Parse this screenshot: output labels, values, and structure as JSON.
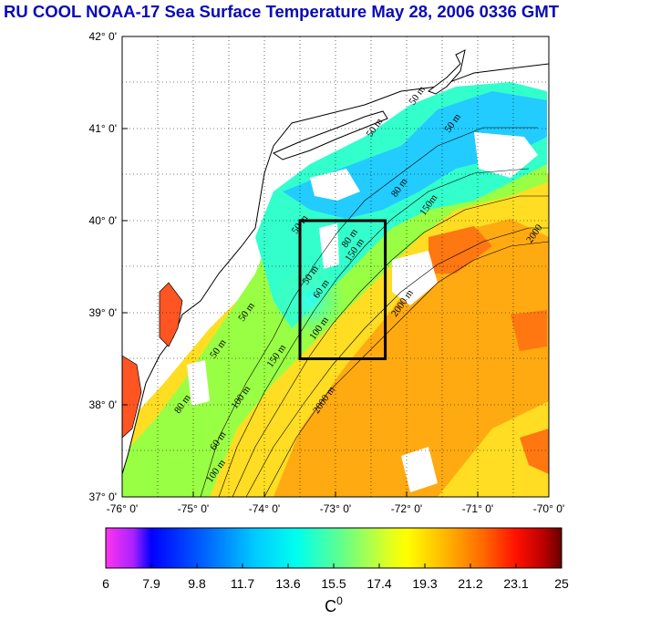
{
  "title": "RU COOL  NOAA-17 Sea Surface Temperature May 28, 2006 0336 GMT",
  "map": {
    "lon_range": [
      -76,
      -70
    ],
    "lat_range": [
      37,
      42
    ],
    "lon_ticks": [
      "-76° 0'",
      "-75° 0'",
      "-74° 0'",
      "-73° 0'",
      "-72° 0'",
      "-71° 0'",
      "-70° 0'"
    ],
    "lat_ticks": [
      "42° 0'",
      "41° 0'",
      "40° 0'",
      "39° 0'",
      "38° 0'",
      "37° 0'"
    ],
    "study_box": {
      "lon_min": -73.5,
      "lon_max": -72.3,
      "lat_min": 38.5,
      "lat_max": 40.0
    },
    "contour_labels": [
      {
        "text": "50 m",
        "lon": -74.7,
        "lat": 38.5
      },
      {
        "text": "50 m",
        "lon": -74.3,
        "lat": 38.9
      },
      {
        "text": "50 m",
        "lon": -73.4,
        "lat": 39.3
      },
      {
        "text": "50 m",
        "lon": -73.55,
        "lat": 39.85
      },
      {
        "text": "50 m",
        "lon": -72.5,
        "lat": 40.9
      },
      {
        "text": "50 m",
        "lon": -71.9,
        "lat": 41.25
      },
      {
        "text": "50 m",
        "lon": -71.4,
        "lat": 40.95
      },
      {
        "text": "60 m",
        "lon": -73.25,
        "lat": 39.15
      },
      {
        "text": "60 m",
        "lon": -74.7,
        "lat": 37.5
      },
      {
        "text": "80 m",
        "lon": -72.85,
        "lat": 39.7
      },
      {
        "text": "80 m",
        "lon": -72.15,
        "lat": 40.25
      },
      {
        "text": "80 m",
        "lon": -75.2,
        "lat": 37.9
      },
      {
        "text": "100 m",
        "lon": -73.3,
        "lat": 38.7
      },
      {
        "text": "100 m",
        "lon": -74.4,
        "lat": 37.95
      },
      {
        "text": "100 m",
        "lon": -74.75,
        "lat": 37.15
      },
      {
        "text": "150 m",
        "lon": -73.9,
        "lat": 38.4
      },
      {
        "text": "150 m",
        "lon": -72.8,
        "lat": 39.55
      },
      {
        "text": "150m",
        "lon": -71.75,
        "lat": 40.05
      },
      {
        "text": "2000 m",
        "lon": -73.25,
        "lat": 37.9
      },
      {
        "text": "2000 m",
        "lon": -72.15,
        "lat": 38.95
      },
      {
        "text": "2000",
        "lon": -70.25,
        "lat": 39.75
      }
    ]
  },
  "colorbar": {
    "unit": "C",
    "unit_superscript": "0",
    "min": 6,
    "max": 25,
    "tick_labels": [
      "6",
      "7.9",
      "9.8",
      "11.7",
      "13.6",
      "15.5",
      "17.4",
      "19.3",
      "21.2",
      "23.1",
      "25"
    ],
    "colors": [
      "#ff33ee",
      "#9922ff",
      "#0000ff",
      "#0077ff",
      "#00ccff",
      "#00ffee",
      "#66ff88",
      "#ccff33",
      "#ffff00",
      "#ffbb00",
      "#ff7700",
      "#ff2200",
      "#cc0000",
      "#770000"
    ]
  },
  "colors": {
    "title": "#0a0ab8",
    "land": "#ffffff",
    "frame": "#000000"
  }
}
